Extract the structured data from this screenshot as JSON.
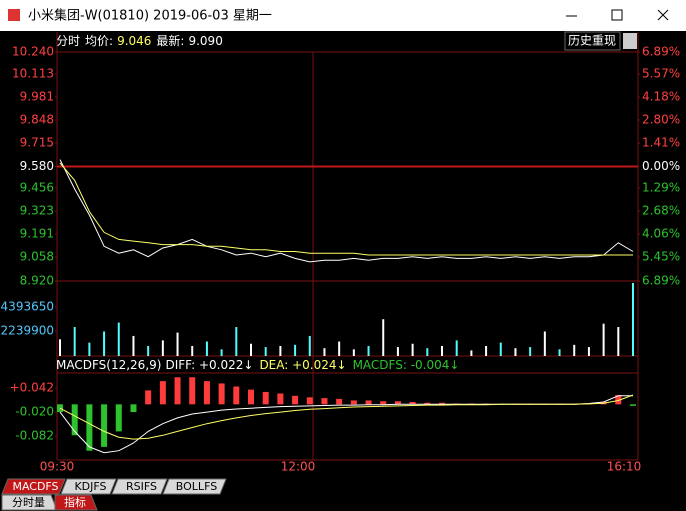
{
  "window": {
    "title": "小米集团-W(01810) 2019-06-03 星期一"
  },
  "info": {
    "mode": "分时",
    "avg_label": "均价:",
    "avg": "9.046",
    "last_label": "最新:",
    "last": "9.090",
    "button": "历史重现"
  },
  "chart_data": [
    {
      "type": "line",
      "ylim": [
        8.92,
        10.24
      ],
      "yticks": [
        {
          "value": 10.24,
          "label": "10.240"
        },
        10.113,
        9.981,
        9.848,
        9.715,
        {
          "value": 9.58,
          "label": "9.580"
        },
        9.456,
        9.323,
        9.191,
        9.058,
        {
          "value": 8.92,
          "label": "8.920"
        }
      ],
      "y2lim": [
        -6.89,
        6.89
      ],
      "y2ticks": [
        {
          "value": 6.89,
          "label": "6.89%"
        },
        {
          "value": 5.57,
          "label": "5.57%"
        },
        {
          "value": 4.18,
          "label": "4.18%"
        },
        {
          "value": 2.8,
          "label": "2.80%"
        },
        {
          "value": 1.41,
          "label": "1.41%"
        },
        {
          "value": 0,
          "label": "0.00%"
        },
        {
          "value": -1.29,
          "label": "1.29%"
        },
        {
          "value": -2.68,
          "label": "2.68%"
        },
        {
          "value": -4.06,
          "label": "4.06%"
        },
        {
          "value": -5.45,
          "label": "5.45%"
        },
        {
          "value": -6.89,
          "label": "6.89%"
        }
      ],
      "time_labels": [
        "09:30",
        "12:00",
        "16:10"
      ],
      "series": [
        {
          "color": "#ffffff",
          "values": [
            9.62,
            9.45,
            9.3,
            9.12,
            9.08,
            9.1,
            9.06,
            9.11,
            9.13,
            9.16,
            9.12,
            9.1,
            9.07,
            9.08,
            9.06,
            9.08,
            9.05,
            9.03,
            9.04,
            9.04,
            9.05,
            9.04,
            9.05,
            9.05,
            9.06,
            9.05,
            9.06,
            9.05,
            9.05,
            9.06,
            9.05,
            9.06,
            9.05,
            9.06,
            9.05,
            9.06,
            9.06,
            9.07,
            9.14,
            9.09
          ]
        },
        {
          "color": "#ffff66",
          "values": [
            9.6,
            9.5,
            9.32,
            9.2,
            9.16,
            9.15,
            9.14,
            9.13,
            9.13,
            9.13,
            9.12,
            9.12,
            9.11,
            9.1,
            9.1,
            9.09,
            9.09,
            9.08,
            9.08,
            9.08,
            9.08,
            9.07,
            9.07,
            9.07,
            9.07,
            9.07,
            9.07,
            9.07,
            9.07,
            9.07,
            9.07,
            9.07,
            9.07,
            9.07,
            9.07,
            9.07,
            9.07,
            9.07,
            9.07,
            9.07
          ]
        }
      ]
    },
    {
      "type": "bar",
      "ylim": [
        0,
        6550000
      ],
      "yticks": [
        4393650,
        2239900
      ],
      "values": [
        1500000,
        2600000,
        1200000,
        2200000,
        3000000,
        1800000,
        900000,
        1400000,
        2100000,
        900000,
        1300000,
        600000,
        2600000,
        1100000,
        800000,
        900000,
        1000000,
        1800000,
        700000,
        1300000,
        600000,
        900000,
        3300000,
        800000,
        1100000,
        700000,
        900000,
        1400000,
        500000,
        900000,
        1200000,
        700000,
        800000,
        2200000,
        600000,
        1000000,
        800000,
        2900000,
        2600000,
        6550000
      ],
      "colors": [
        "#ffffff",
        "#54fcfc"
      ]
    },
    {
      "type": "macd",
      "title": "MACDFS(12,26,9)",
      "readouts": [
        "DIFF: +0.022↓",
        "DEA: +0.024↓",
        "MACDFS: -0.004↓"
      ],
      "ylim": [
        -0.144,
        0.081
      ],
      "yticks": [
        {
          "value": 0.042,
          "label": "+0.042"
        },
        {
          "value": -0.02,
          "label": "-0.020"
        },
        -0.082
      ],
      "series": [
        {
          "color": "#ffffff",
          "values": [
            -0.02,
            -0.07,
            -0.11,
            -0.125,
            -0.12,
            -0.1,
            -0.07,
            -0.05,
            -0.035,
            -0.025,
            -0.02,
            -0.015,
            -0.012,
            -0.01,
            -0.008,
            -0.006,
            -0.005,
            -0.004,
            -0.003,
            -0.002,
            -0.002,
            -0.001,
            -0.001,
            0,
            0,
            0,
            0,
            0,
            0,
            0,
            0,
            0,
            0,
            0,
            0,
            0,
            0.002,
            0.006,
            0.022,
            0.022
          ]
        },
        {
          "color": "#ffff66",
          "values": [
            -0.01,
            -0.03,
            -0.05,
            -0.07,
            -0.085,
            -0.09,
            -0.088,
            -0.08,
            -0.07,
            -0.06,
            -0.05,
            -0.042,
            -0.035,
            -0.029,
            -0.024,
            -0.02,
            -0.016,
            -0.013,
            -0.011,
            -0.009,
            -0.007,
            -0.006,
            -0.005,
            -0.004,
            -0.003,
            -0.002,
            -0.002,
            -0.001,
            -0.001,
            -0.001,
            0,
            0,
            0,
            0,
            0,
            0,
            0.001,
            0.003,
            0.01,
            0.024
          ]
        },
        {
          "colors": [
            "#ff3c3c",
            "#2ec22e"
          ],
          "values": [
            -0.02,
            -0.08,
            -0.12,
            -0.11,
            -0.07,
            -0.02,
            0.036,
            0.06,
            0.07,
            0.07,
            0.06,
            0.054,
            0.046,
            0.038,
            0.032,
            0.028,
            0.022,
            0.018,
            0.016,
            0.014,
            0.01,
            0.01,
            0.008,
            0.008,
            0.006,
            0.004,
            0.004,
            0.002,
            0.002,
            0.002,
            0,
            0,
            0,
            0,
            0,
            0,
            0.002,
            0.006,
            0.024,
            -0.004
          ]
        }
      ]
    }
  ],
  "tabs": [
    "MACDFS",
    "KDJFS",
    "RSIFS",
    "BOLLFS"
  ],
  "subtabs": [
    "分时量",
    "指标"
  ]
}
